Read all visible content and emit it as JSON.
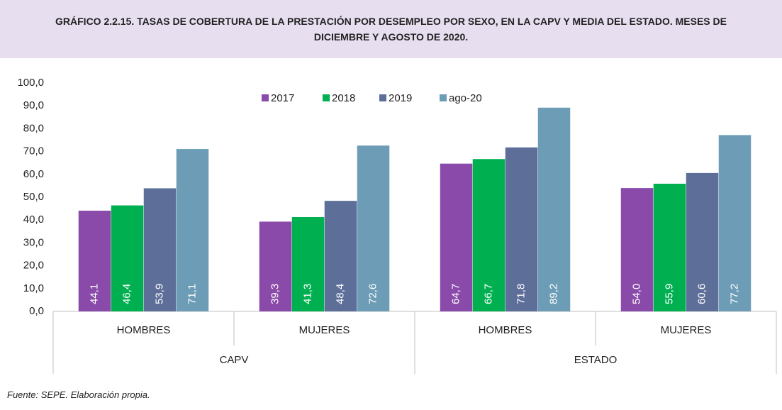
{
  "chart_data": {
    "type": "bar",
    "title": "GRÁFICO 2.2.15. TASAS DE COBERTURA DE LA PRESTACIÓN POR DESEMPLEO POR SEXO, EN LA CAPV Y MEDIA DEL ESTADO. MESES DE DICIEMBRE Y AGOSTO DE 2020.",
    "categories": [
      "HOMBRES",
      "MUJERES",
      "HOMBRES",
      "MUJERES"
    ],
    "groups": [
      "CAPV",
      "ESTADO"
    ],
    "series": [
      {
        "name": "2017",
        "color": "#8a4aaa",
        "values": [
          44.1,
          39.3,
          64.7,
          54.0
        ],
        "value_labels": [
          "44,1",
          "39,3",
          "64,7",
          "54,0"
        ]
      },
      {
        "name": "2018",
        "color": "#00b050",
        "values": [
          46.4,
          41.3,
          66.7,
          55.9
        ],
        "value_labels": [
          "46,4",
          "41,3",
          "66,7",
          "55,9"
        ]
      },
      {
        "name": "2019",
        "color": "#5d6f99",
        "values": [
          53.9,
          48.4,
          71.8,
          60.6
        ],
        "value_labels": [
          "53,9",
          "48,4",
          "71,8",
          "60,6"
        ]
      },
      {
        "name": "ago-20",
        "color": "#6d9db6",
        "values": [
          71.1,
          72.6,
          89.2,
          77.2
        ],
        "value_labels": [
          "71,1",
          "72,6",
          "89,2",
          "77,2"
        ]
      }
    ],
    "ylim": [
      0,
      100
    ],
    "yticks": [
      {
        "value": 0,
        "label": "0,0"
      },
      {
        "value": 10,
        "label": "10,0"
      },
      {
        "value": 20,
        "label": "20,0"
      },
      {
        "value": 30,
        "label": "30,0"
      },
      {
        "value": 40,
        "label": "40,0"
      },
      {
        "value": 50,
        "label": "50,0"
      },
      {
        "value": 60,
        "label": "60,0"
      },
      {
        "value": 70,
        "label": "70,0"
      },
      {
        "value": 80,
        "label": "80,0"
      },
      {
        "value": 90,
        "label": "90,0"
      },
      {
        "value": 100,
        "label": "100,0"
      }
    ],
    "grid": false,
    "legend": "top",
    "source": "Fuente: SEPE. Elaboración propia."
  }
}
